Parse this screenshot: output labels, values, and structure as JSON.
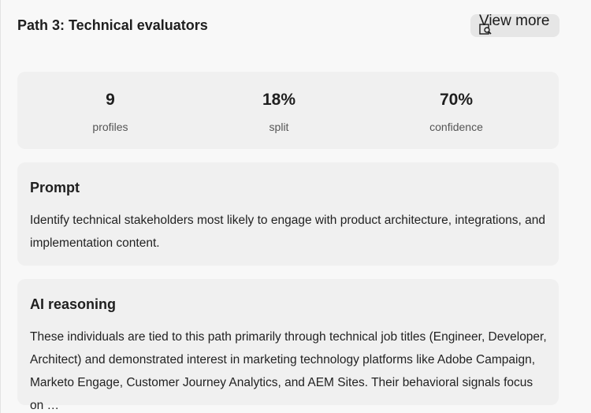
{
  "header": {
    "title": "Path 3: Technical evaluators",
    "view_more_label": "View more",
    "view_more_icon": "search-icon"
  },
  "stats": [
    {
      "value": "9",
      "label": "profiles"
    },
    {
      "value": "18%",
      "label": "split"
    },
    {
      "value": "70%",
      "label": "confidence"
    }
  ],
  "prompt": {
    "title": "Prompt",
    "text": "Identify technical stakeholders most likely to engage with product architecture, integrations, and implementation content."
  },
  "reasoning": {
    "title": "AI reasoning",
    "text": "These individuals are tied to this path primarily through technical job titles (Engineer, Developer, Architect) and demonstrated interest in marketing technology platforms like Adobe Campaign, Marketo Engage, Customer Journey Analytics, and AEM Sites. Their behavioral signals focus on …"
  },
  "colors": {
    "background": "#f8f8f8",
    "card": "#f0f0f0",
    "button": "#e6e6e6",
    "text": "#222222"
  }
}
